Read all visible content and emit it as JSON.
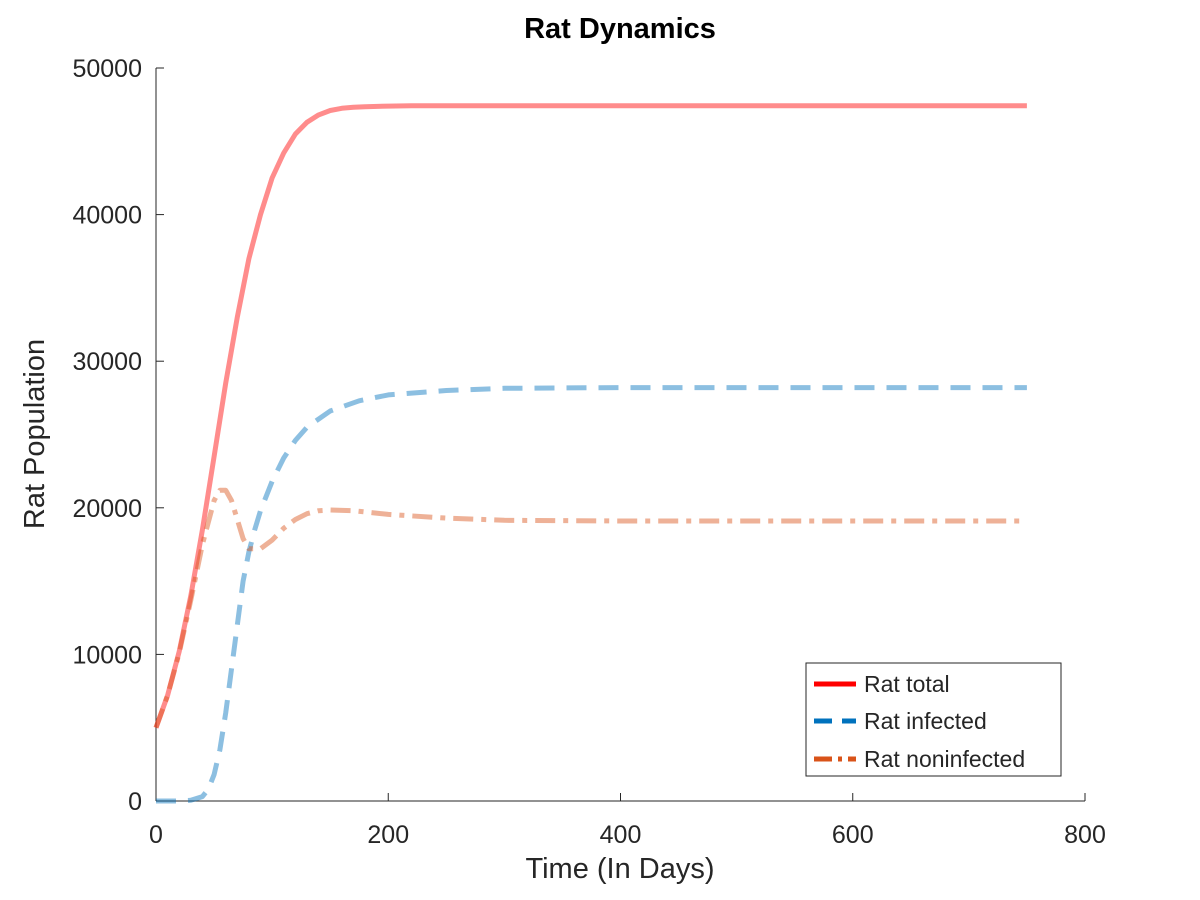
{
  "chart_data": {
    "type": "line",
    "title": "Rat Dynamics",
    "xlabel": "Time (In Days)",
    "ylabel": "Rat Population",
    "xlim": [
      0,
      800
    ],
    "ylim": [
      0,
      50000
    ],
    "x_ticks": [
      0,
      200,
      400,
      600,
      800
    ],
    "y_ticks": [
      0,
      10000,
      20000,
      30000,
      40000,
      50000
    ],
    "grid": false,
    "legend_position": "bottom-right",
    "series": [
      {
        "name": "Rat total",
        "color": "#ff0000",
        "line_style": "solid",
        "x": [
          0,
          10,
          20,
          30,
          40,
          50,
          60,
          70,
          80,
          90,
          100,
          110,
          120,
          130,
          140,
          150,
          160,
          170,
          180,
          200,
          220,
          250,
          300,
          400,
          500,
          600,
          700,
          750
        ],
        "y": [
          5000,
          7200,
          10200,
          14000,
          18500,
          23500,
          28500,
          33000,
          37000,
          40000,
          42500,
          44200,
          45500,
          46300,
          46800,
          47100,
          47250,
          47320,
          47360,
          47400,
          47420,
          47430,
          47430,
          47430,
          47430,
          47430,
          47430,
          47430
        ]
      },
      {
        "name": "Rat infected",
        "color": "#0072bd",
        "line_style": "dashed",
        "x": [
          0,
          10,
          20,
          30,
          40,
          45,
          50,
          55,
          60,
          65,
          70,
          75,
          80,
          85,
          90,
          100,
          110,
          120,
          130,
          150,
          175,
          200,
          250,
          300,
          400,
          500,
          600,
          700,
          750
        ],
        "y": [
          0,
          0,
          0,
          50,
          300,
          800,
          1800,
          3500,
          6000,
          9000,
          12000,
          15000,
          17000,
          18500,
          19800,
          21800,
          23400,
          24600,
          25500,
          26600,
          27300,
          27700,
          28000,
          28150,
          28200,
          28200,
          28200,
          28200,
          28200
        ]
      },
      {
        "name": "Rat noninfected",
        "color": "#d95319",
        "line_style": "dashdot",
        "x": [
          0,
          10,
          20,
          30,
          40,
          50,
          55,
          60,
          65,
          70,
          75,
          80,
          90,
          100,
          110,
          120,
          130,
          140,
          150,
          170,
          200,
          250,
          300,
          400,
          500,
          600,
          700,
          750
        ],
        "y": [
          5000,
          7200,
          10100,
          13700,
          17500,
          20500,
          21200,
          21200,
          20500,
          19200,
          17900,
          17200,
          17200,
          17800,
          18600,
          19200,
          19600,
          19800,
          19850,
          19800,
          19550,
          19300,
          19150,
          19100,
          19100,
          19100,
          19100,
          19100
        ]
      }
    ]
  }
}
